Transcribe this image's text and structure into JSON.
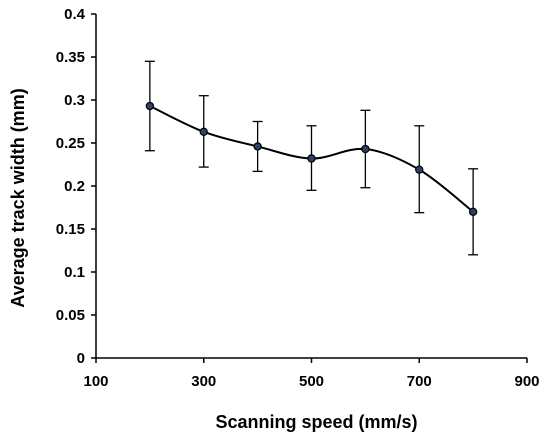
{
  "chart_data": {
    "type": "line",
    "title": "",
    "xlabel": "Scanning speed (mm/s)",
    "ylabel": "Average track width (mm)",
    "xlim": [
      100,
      900
    ],
    "ylim": [
      0,
      0.4
    ],
    "x_ticks": [
      "100",
      "300",
      "500",
      "700",
      "900"
    ],
    "y_ticks": [
      "0",
      "0.05",
      "0.1",
      "0.15",
      "0.2",
      "0.25",
      "0.3",
      "0.35",
      "0.4"
    ],
    "grid": false,
    "series": [
      {
        "x": [
          200,
          300,
          400,
          500,
          600,
          700,
          800
        ],
        "y": [
          0.293,
          0.263,
          0.246,
          0.232,
          0.243,
          0.219,
          0.17
        ],
        "error_low": [
          0.241,
          0.222,
          0.217,
          0.195,
          0.198,
          0.169,
          0.12
        ],
        "error_high": [
          0.345,
          0.305,
          0.275,
          0.27,
          0.288,
          0.27,
          0.22
        ],
        "line_color": "#000000",
        "marker_color": "#2f3f6e"
      }
    ]
  }
}
